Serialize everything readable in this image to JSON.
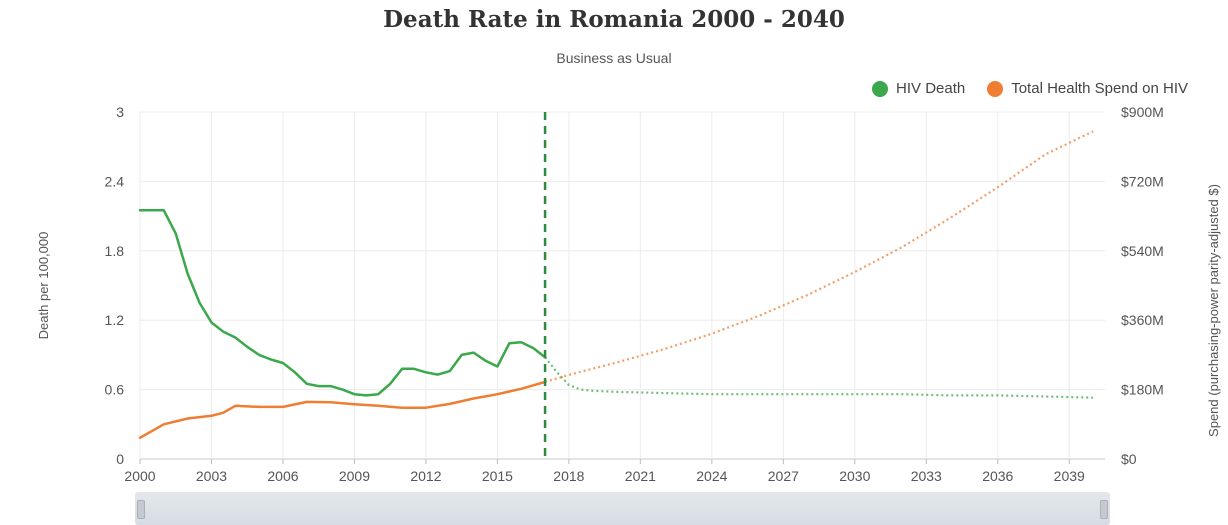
{
  "colors": {
    "hiv": "#3aa84b",
    "spend": "#ef7d32",
    "divider": "#2e8b3a"
  },
  "chart_data": {
    "type": "line",
    "title": "Death Rate in Romania 2000 - 2040",
    "subtitle": "Business as Usual",
    "ylabel": "Death per 100,000",
    "y2label": "Spend (purchasing-power parity-adjusted $)",
    "xlim": [
      2000,
      2040.5
    ],
    "ylim": [
      0,
      3
    ],
    "y2lim": [
      0,
      900
    ],
    "x_ticks": [
      2000,
      2003,
      2006,
      2009,
      2012,
      2015,
      2018,
      2021,
      2024,
      2027,
      2030,
      2033,
      2036,
      2039
    ],
    "y_ticks": [
      {
        "value": 0,
        "label": "0"
      },
      {
        "value": 0.6,
        "label": "0.6"
      },
      {
        "value": 1.2,
        "label": "1.2"
      },
      {
        "value": 1.8,
        "label": "1.8"
      },
      {
        "value": 2.4,
        "label": "2.4"
      },
      {
        "value": 3,
        "label": "3"
      }
    ],
    "y2_ticks": [
      {
        "value": 0,
        "label": "$0"
      },
      {
        "value": 180,
        "label": "$180M"
      },
      {
        "value": 360,
        "label": "$360M"
      },
      {
        "value": 540,
        "label": "$540M"
      },
      {
        "value": 720,
        "label": "$720M"
      },
      {
        "value": 900,
        "label": "$900M"
      }
    ],
    "divider_x": 2017,
    "grid": true,
    "legend": "top-right",
    "series": [
      {
        "name": "HIV Death",
        "axis": "left",
        "color_key": "hiv",
        "x": [
          2000,
          2000.5,
          2001,
          2001.5,
          2002,
          2002.5,
          2003,
          2003.5,
          2004,
          2004.5,
          2005,
          2005.5,
          2006,
          2006.5,
          2007,
          2007.5,
          2008,
          2008.5,
          2009,
          2009.5,
          2010,
          2010.5,
          2011,
          2011.5,
          2012,
          2012.5,
          2013,
          2013.5,
          2014,
          2014.5,
          2015,
          2015.5,
          2016,
          2016.5,
          2017,
          2017.5,
          2018,
          2018.5,
          2019,
          2020,
          2022,
          2024,
          2026,
          2028,
          2030,
          2032,
          2034,
          2036,
          2038,
          2040
        ],
        "y": [
          2.15,
          2.15,
          2.15,
          1.95,
          1.6,
          1.35,
          1.18,
          1.1,
          1.05,
          0.97,
          0.9,
          0.86,
          0.83,
          0.75,
          0.65,
          0.63,
          0.63,
          0.6,
          0.56,
          0.55,
          0.56,
          0.65,
          0.78,
          0.78,
          0.75,
          0.73,
          0.76,
          0.9,
          0.92,
          0.85,
          0.8,
          1.0,
          1.01,
          0.96,
          0.88,
          0.75,
          0.64,
          0.6,
          0.59,
          0.58,
          0.57,
          0.56,
          0.56,
          0.56,
          0.56,
          0.56,
          0.55,
          0.55,
          0.54,
          0.53
        ],
        "projected_from": 2017
      },
      {
        "name": "Total Health Spend on HIV",
        "axis": "right",
        "color_key": "spend",
        "x": [
          2000,
          2001,
          2002,
          2003,
          2003.5,
          2004,
          2005,
          2006,
          2007,
          2008,
          2009,
          2010,
          2011,
          2012,
          2013,
          2014,
          2015,
          2016,
          2017,
          2018,
          2020,
          2022,
          2024,
          2026,
          2028,
          2030,
          2032,
          2034,
          2036,
          2038,
          2040
        ],
        "y": [
          55,
          90,
          105,
          112,
          120,
          138,
          135,
          135,
          148,
          147,
          142,
          138,
          133,
          133,
          143,
          157,
          168,
          182,
          200,
          218,
          250,
          285,
          325,
          372,
          425,
          485,
          550,
          625,
          705,
          790,
          850
        ],
        "projected_from": 2017
      }
    ]
  }
}
